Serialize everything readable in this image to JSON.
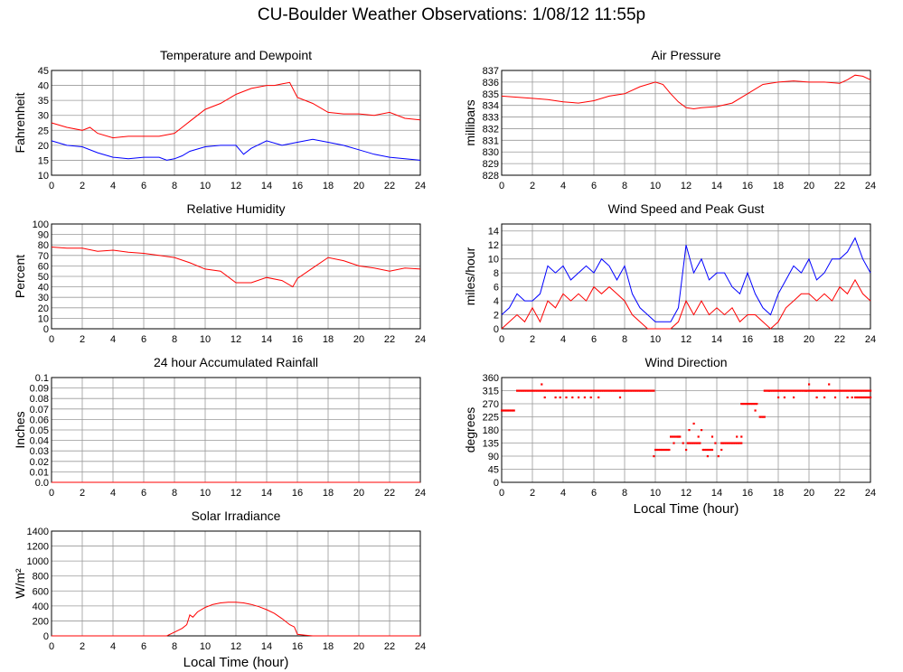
{
  "title": "CU-Boulder Weather Observations: 1/08/12 11:55p",
  "colors": {
    "red": "#ff0000",
    "blue": "#0000ff",
    "grid": "#999999"
  },
  "chart_data": [
    {
      "id": "temp",
      "type": "line",
      "title": "Temperature and Dewpoint",
      "ylabel": "Fahrenheit",
      "xlabel": "",
      "xlim": [
        0,
        24
      ],
      "ylim": [
        10,
        45
      ],
      "yticks": [
        "10",
        "15",
        "20",
        "25",
        "30",
        "35",
        "40",
        "45"
      ],
      "xticks": [
        "0",
        "2",
        "4",
        "6",
        "8",
        "10",
        "12",
        "14",
        "16",
        "18",
        "20",
        "22",
        "24"
      ],
      "grid": true,
      "series": [
        {
          "color": "red",
          "x": [
            0,
            1,
            2,
            2.5,
            3,
            4,
            5,
            6,
            7,
            8,
            8.5,
            9,
            9.5,
            10,
            11,
            12,
            13,
            14,
            14.5,
            15,
            15.5,
            16,
            17,
            18,
            19,
            20,
            21,
            22,
            23,
            24
          ],
          "y": [
            27.5,
            26,
            25,
            26,
            24,
            22.5,
            23,
            23,
            23,
            24,
            26,
            28,
            30,
            32,
            34,
            37,
            39,
            40,
            40,
            40.5,
            41,
            36,
            34,
            31,
            30.5,
            30.5,
            30,
            31,
            29,
            28.5
          ]
        },
        {
          "color": "blue",
          "x": [
            0,
            1,
            2,
            3,
            4,
            5,
            6,
            7,
            7.5,
            8,
            8.5,
            9,
            10,
            11,
            12,
            12.5,
            13,
            14,
            15,
            16,
            17,
            18,
            19,
            20,
            21,
            22,
            23,
            24
          ],
          "y": [
            21.5,
            20,
            19.5,
            17.5,
            16,
            15.5,
            16,
            16,
            15,
            15.5,
            16.5,
            18,
            19.5,
            20,
            20,
            17,
            19,
            21.5,
            20,
            21,
            22,
            21,
            20,
            18.5,
            17,
            16,
            15.5,
            15
          ]
        }
      ]
    },
    {
      "id": "pressure",
      "type": "line",
      "title": "Air Pressure",
      "ylabel": "millibars",
      "xlabel": "",
      "xlim": [
        0,
        24
      ],
      "ylim": [
        828,
        837
      ],
      "yticks": [
        "828",
        "829",
        "830",
        "831",
        "832",
        "833",
        "834",
        "835",
        "836",
        "837"
      ],
      "xticks": [
        "0",
        "2",
        "4",
        "6",
        "8",
        "10",
        "12",
        "14",
        "16",
        "18",
        "20",
        "22",
        "24"
      ],
      "grid": true,
      "series": [
        {
          "color": "red",
          "x": [
            0,
            1,
            2,
            3,
            4,
            5,
            6,
            7,
            8,
            9,
            10,
            10.5,
            11,
            11.5,
            12,
            12.5,
            13,
            14,
            15,
            16,
            17,
            18,
            19,
            20,
            21,
            22,
            22.5,
            23,
            23.5,
            24
          ],
          "y": [
            834.8,
            834.7,
            834.6,
            834.5,
            834.3,
            834.2,
            834.4,
            834.8,
            835.0,
            835.6,
            836.0,
            835.8,
            835.0,
            834.3,
            833.8,
            833.7,
            833.8,
            833.9,
            834.2,
            835.0,
            835.8,
            836.0,
            836.1,
            836.0,
            836.0,
            835.9,
            836.2,
            836.6,
            836.5,
            836.2
          ]
        }
      ]
    },
    {
      "id": "humidity",
      "type": "line",
      "title": "Relative Humidity",
      "ylabel": "Percent",
      "xlabel": "",
      "xlim": [
        0,
        24
      ],
      "ylim": [
        0,
        100
      ],
      "yticks": [
        "0",
        "10",
        "20",
        "30",
        "40",
        "50",
        "60",
        "70",
        "80",
        "90",
        "100"
      ],
      "xticks": [
        "0",
        "2",
        "4",
        "6",
        "8",
        "10",
        "12",
        "14",
        "16",
        "18",
        "20",
        "22",
        "24"
      ],
      "grid": true,
      "series": [
        {
          "color": "red",
          "x": [
            0,
            1,
            2,
            3,
            4,
            5,
            6,
            7,
            8,
            9,
            10,
            11,
            12,
            13,
            14,
            15,
            15.7,
            16,
            17,
            18,
            19,
            20,
            21,
            22,
            23,
            24
          ],
          "y": [
            78,
            77,
            77,
            74,
            75,
            73,
            72,
            70,
            68,
            63,
            57,
            55,
            44,
            44,
            49,
            46,
            40,
            48,
            58,
            68,
            65,
            60,
            58,
            55,
            58,
            57
          ]
        }
      ]
    },
    {
      "id": "wind",
      "type": "line",
      "title": "Wind Speed and Peak Gust",
      "ylabel": "miles/hour",
      "xlabel": "",
      "xlim": [
        0,
        24
      ],
      "ylim": [
        0,
        15
      ],
      "yticks": [
        "0",
        "2",
        "4",
        "6",
        "8",
        "10",
        "12",
        "14"
      ],
      "xticks": [
        "0",
        "2",
        "4",
        "6",
        "8",
        "10",
        "12",
        "14",
        "16",
        "18",
        "20",
        "22",
        "24"
      ],
      "grid": true,
      "series": [
        {
          "color": "blue",
          "x": [
            0,
            0.5,
            1,
            1.5,
            2,
            2.5,
            3,
            3.5,
            4,
            4.5,
            5,
            5.5,
            6,
            6.5,
            7,
            7.5,
            8,
            8.5,
            9,
            9.5,
            10,
            10.5,
            11,
            11.5,
            12,
            12.5,
            13,
            13.5,
            14,
            14.5,
            15,
            15.5,
            16,
            16.5,
            17,
            17.5,
            18,
            18.5,
            19,
            19.5,
            20,
            20.5,
            21,
            21.5,
            22,
            22.5,
            23,
            23.5,
            24
          ],
          "y": [
            2,
            3,
            5,
            4,
            4,
            5,
            9,
            8,
            9,
            7,
            8,
            9,
            8,
            10,
            9,
            7,
            9,
            5,
            3,
            2,
            1,
            1,
            1,
            3,
            12,
            8,
            10,
            7,
            8,
            8,
            6,
            5,
            8,
            5,
            3,
            2,
            5,
            7,
            9,
            8,
            10,
            7,
            8,
            10,
            10,
            11,
            13,
            10,
            8
          ]
        },
        {
          "color": "red",
          "x": [
            0,
            0.5,
            1,
            1.5,
            2,
            2.5,
            3,
            3.5,
            4,
            4.5,
            5,
            5.5,
            6,
            6.5,
            7,
            7.5,
            8,
            8.5,
            9,
            9.5,
            10,
            10.5,
            11,
            11.5,
            12,
            12.5,
            13,
            13.5,
            14,
            14.5,
            15,
            15.5,
            16,
            16.5,
            17,
            17.5,
            18,
            18.5,
            19,
            19.5,
            20,
            20.5,
            21,
            21.5,
            22,
            22.5,
            23,
            23.5,
            24
          ],
          "y": [
            0,
            1,
            2,
            1,
            3,
            1,
            4,
            3,
            5,
            4,
            5,
            4,
            6,
            5,
            6,
            5,
            4,
            2,
            1,
            0,
            0,
            0,
            0,
            1,
            4,
            2,
            4,
            2,
            3,
            2,
            3,
            1,
            2,
            2,
            1,
            0,
            1,
            3,
            4,
            5,
            5,
            4,
            5,
            4,
            6,
            5,
            7,
            5,
            4
          ]
        }
      ]
    },
    {
      "id": "rain",
      "type": "line",
      "title": "24 hour Accumulated Rainfall",
      "ylabel": "Inches",
      "xlabel": "",
      "xlim": [
        0,
        24
      ],
      "ylim": [
        0,
        0.1
      ],
      "yticks": [
        "0.0",
        "0.01",
        "0.02",
        "0.03",
        "0.04",
        "0.05",
        "0.06",
        "0.07",
        "0.08",
        "0.09",
        "0.1"
      ],
      "xticks": [
        "0",
        "2",
        "4",
        "6",
        "8",
        "10",
        "12",
        "14",
        "16",
        "18",
        "20",
        "22",
        "24"
      ],
      "grid": true,
      "series": [
        {
          "color": "red",
          "x": [
            0,
            24
          ],
          "y": [
            0,
            0
          ]
        }
      ]
    },
    {
      "id": "winddir",
      "type": "scatter",
      "title": "Wind Direction",
      "ylabel": "degrees",
      "xlabel": "Local Time (hour)",
      "xlim": [
        0,
        24
      ],
      "ylim": [
        0,
        360
      ],
      "yticks": [
        "0",
        "45",
        "90",
        "135",
        "180",
        "225",
        "270",
        "315",
        "360"
      ],
      "xticks": [
        "0",
        "2",
        "4",
        "6",
        "8",
        "10",
        "12",
        "14",
        "16",
        "18",
        "20",
        "22",
        "24"
      ],
      "grid": true,
      "series": [
        {
          "color": "red",
          "segments": [
            {
              "x0": 0,
              "x1": 0.8,
              "y": 247
            },
            {
              "x0": 1,
              "x1": 9.9,
              "y": 315
            },
            {
              "x0": 10,
              "x1": 10.9,
              "y": 112
            },
            {
              "x0": 11,
              "x1": 11.6,
              "y": 157
            },
            {
              "x0": 12.1,
              "x1": 12.9,
              "y": 135
            },
            {
              "x0": 13.2,
              "x1": 13.7,
              "y": 112
            },
            {
              "x0": 14.3,
              "x1": 15.6,
              "y": 135
            },
            {
              "x0": 15.6,
              "x1": 16.6,
              "y": 270
            },
            {
              "x0": 16.8,
              "x1": 17.1,
              "y": 225
            },
            {
              "x0": 17.1,
              "x1": 24,
              "y": 315
            },
            {
              "x0": 23,
              "x1": 24,
              "y": 292
            }
          ],
          "x": [
            2.6,
            2.8,
            3.5,
            3.8,
            4.2,
            4.6,
            5.0,
            5.4,
            5.8,
            6.3,
            7.7,
            9.9,
            11.2,
            11.5,
            11.8,
            12.0,
            12.2,
            12.5,
            12.8,
            13.0,
            13.1,
            13.4,
            13.7,
            13.9,
            14.1,
            14.3,
            15.3,
            15.6,
            16.5,
            17.4,
            18.0,
            18.4,
            19.0,
            19.8,
            20.0,
            20.5,
            21.0,
            21.3,
            21.7,
            22.5,
            22.8
          ],
          "y": [
            337,
            292,
            292,
            292,
            292,
            292,
            292,
            292,
            292,
            292,
            292,
            90,
            135,
            157,
            135,
            112,
            180,
            202,
            157,
            180,
            112,
            90,
            157,
            135,
            90,
            112,
            157,
            157,
            247,
            315,
            292,
            292,
            292,
            315,
            337,
            292,
            292,
            337,
            292,
            292,
            292
          ]
        }
      ]
    },
    {
      "id": "solar",
      "type": "area",
      "title": "Solar Irradiance",
      "ylabel": "W/m²",
      "xlabel": "Local Time (hour)",
      "xlim": [
        0,
        24
      ],
      "ylim": [
        0,
        1400
      ],
      "yticks": [
        "0",
        "200",
        "400",
        "600",
        "800",
        "1000",
        "1200",
        "1400"
      ],
      "xticks": [
        "0",
        "2",
        "4",
        "6",
        "8",
        "10",
        "12",
        "14",
        "16",
        "18",
        "20",
        "22",
        "24"
      ],
      "grid": true,
      "series": [
        {
          "color": "red",
          "x": [
            0,
            7.5,
            8,
            8.5,
            8.8,
            9,
            9.2,
            9.5,
            10,
            10.5,
            11,
            11.5,
            12,
            12.5,
            13,
            13.5,
            14,
            14.5,
            15,
            15.5,
            15.8,
            16,
            16.5,
            17,
            24
          ],
          "y": [
            0,
            0,
            50,
            100,
            150,
            280,
            250,
            320,
            380,
            420,
            440,
            450,
            450,
            440,
            420,
            390,
            350,
            300,
            230,
            150,
            120,
            20,
            10,
            0,
            0
          ]
        }
      ]
    }
  ]
}
